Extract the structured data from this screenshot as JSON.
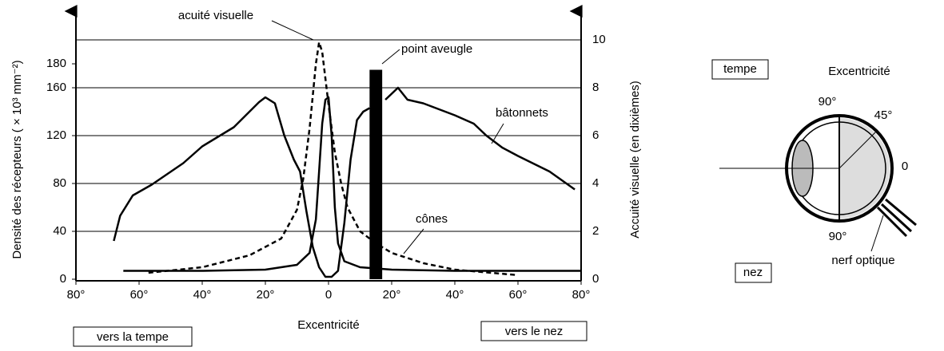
{
  "chart_data": {
    "type": "line",
    "x_label": "Excentricité",
    "y_label": "Densité des récepteurs ( × 10³ mm⁻²)",
    "y2_label": "Accuité visuelle (en dixièmes)",
    "xlim": [
      -80,
      80
    ],
    "xticks": [
      {
        "value": -80,
        "label": "80°"
      },
      {
        "value": -60,
        "label": "60°"
      },
      {
        "value": -40,
        "label": "40°"
      },
      {
        "value": -20,
        "label": "20°"
      },
      0,
      {
        "value": 20,
        "label": "20°"
      },
      {
        "value": 40,
        "label": "40°"
      },
      {
        "value": 60,
        "label": "60°"
      },
      {
        "value": 80,
        "label": "80°"
      }
    ],
    "ylim": [
      0,
      200
    ],
    "yticks": [
      0,
      40,
      80,
      120,
      160,
      180
    ],
    "y2lim": [
      0,
      10
    ],
    "y2ticks": [
      0,
      2,
      4,
      6,
      8,
      10
    ],
    "grid": true,
    "series": [
      {
        "name": "bâtonnets",
        "color": "#000000",
        "dash": false,
        "x": [
          -68,
          -66,
          -62,
          -56,
          -46,
          -40,
          -30,
          -22,
          -20,
          -17,
          -14,
          -11,
          -9,
          -7,
          -5,
          -3,
          -1,
          1,
          3,
          5,
          7,
          9,
          11,
          13,
          17,
          18,
          22,
          25,
          30,
          40,
          46,
          50,
          55,
          60,
          70,
          78
        ],
        "values": [
          32,
          53,
          70,
          79,
          97,
          111,
          127,
          148,
          152,
          147,
          120,
          100,
          90,
          57,
          27,
          10,
          2,
          2,
          7,
          47,
          100,
          133,
          140,
          143,
          null,
          150,
          160,
          150,
          147,
          137,
          130,
          120,
          110,
          103,
          90,
          75
        ]
      },
      {
        "name": "cônes",
        "color": "#000000",
        "dash": false,
        "x": [
          -65,
          -40,
          -20,
          -10,
          -6,
          -4,
          -3,
          -2,
          -1,
          0,
          1,
          2,
          3,
          5,
          10,
          20,
          40,
          60,
          80
        ],
        "values": [
          7,
          7,
          8,
          12,
          22,
          50,
          90,
          130,
          150,
          152,
          120,
          60,
          30,
          15,
          10,
          8,
          7,
          7,
          7
        ]
      },
      {
        "name": "acuité visuelle",
        "color": "#000000",
        "dash": true,
        "axis": "y2",
        "x": [
          -57,
          -40,
          -25,
          -15,
          -10,
          -8,
          -6,
          -4,
          -3,
          -2,
          0,
          2,
          4,
          6,
          10,
          15,
          20,
          30,
          40,
          60
        ],
        "values": [
          0.27,
          0.5,
          1.0,
          1.7,
          2.9,
          4.2,
          6.3,
          9,
          9.9,
          9.5,
          7.3,
          5.3,
          4.0,
          3,
          2,
          1.5,
          1.1,
          0.67,
          0.4,
          0.17
        ]
      }
    ],
    "blind_spot": {
      "label": "point aveugle",
      "x": [
        13,
        17
      ],
      "value": 175
    },
    "side_left": "vers la tempe",
    "side_right": "vers le nez"
  },
  "diagram": {
    "tempe": "tempe",
    "title": "Excentricité",
    "top": "90°",
    "diag": "45°",
    "zero": "0",
    "bottom": "90°",
    "nez": "nez",
    "nerve": "nerf optique"
  }
}
